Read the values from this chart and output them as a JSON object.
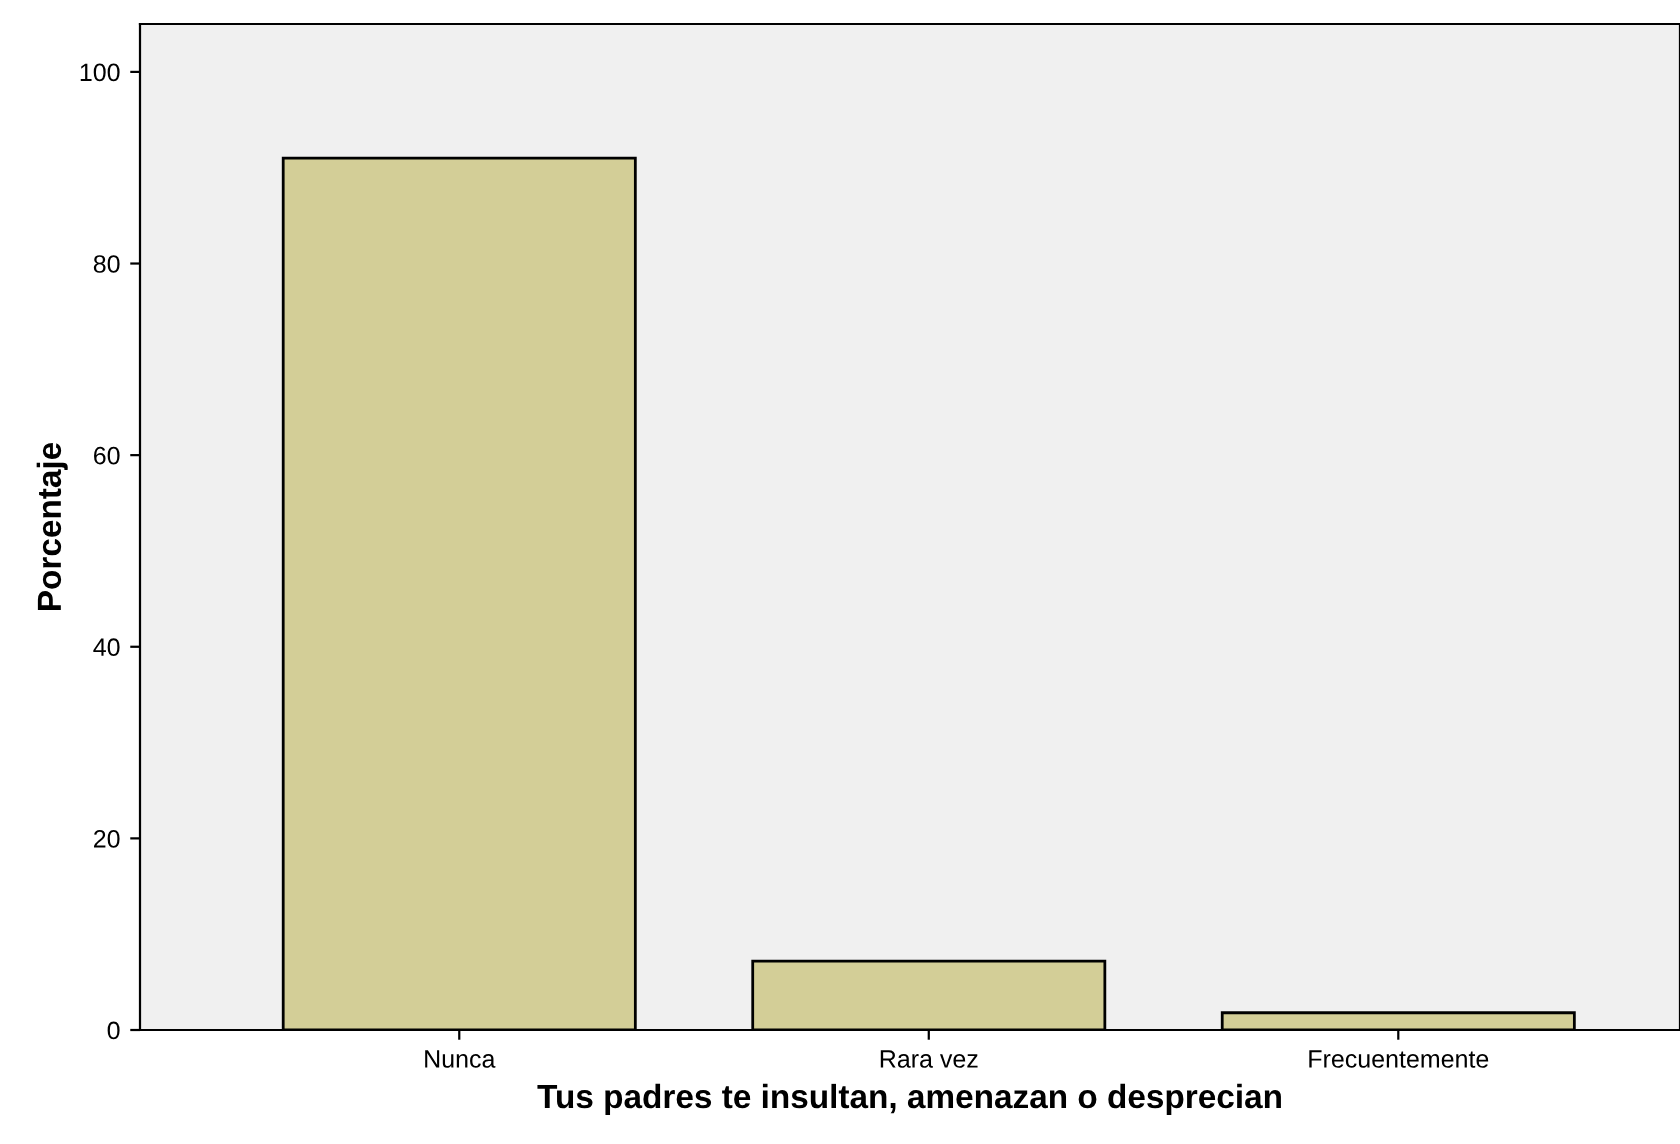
{
  "chart_data": {
    "type": "bar",
    "xlabel": "Tus padres te insultan, amenazan o desprecian",
    "ylabel": "Porcentaje",
    "categories": [
      "Nunca",
      "Rara vez",
      "Frecuentemente"
    ],
    "values": [
      91,
      7.2,
      1.8
    ],
    "color": "#d3ce97",
    "ylim": [
      0,
      105
    ],
    "yticks": [
      0,
      20,
      40,
      60,
      80,
      100
    ],
    "grid": false
  }
}
